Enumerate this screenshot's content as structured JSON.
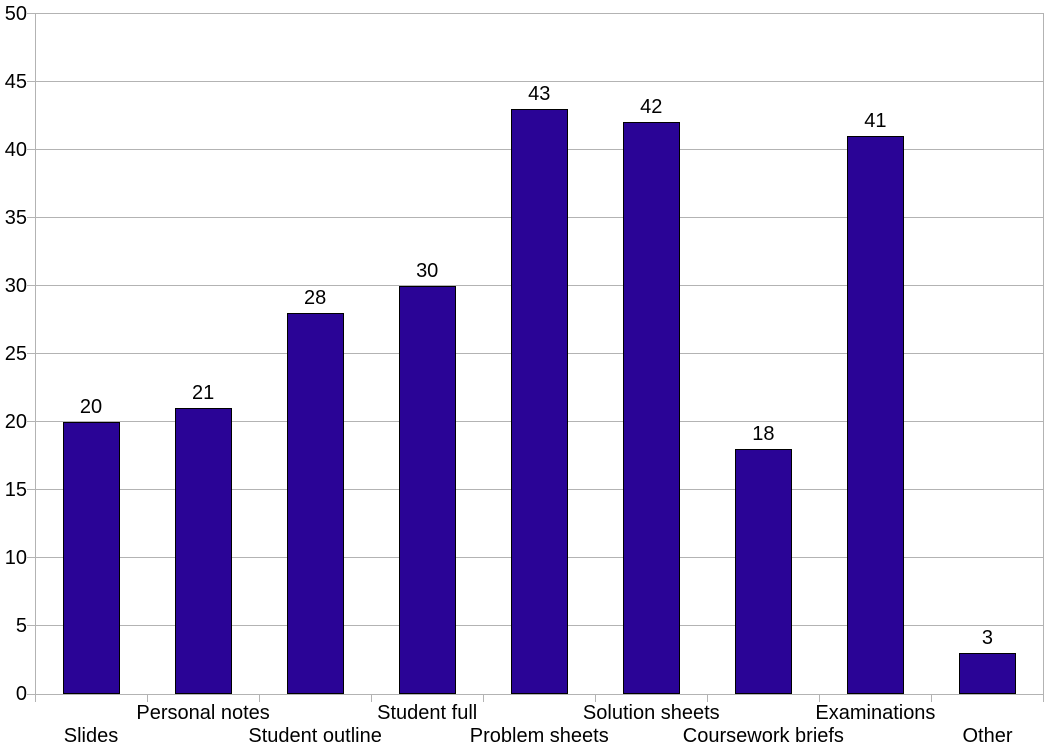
{
  "chart_data": {
    "type": "bar",
    "categories": [
      "Slides",
      "Personal notes",
      "Student outline",
      "Student full",
      "Problem sheets",
      "Solution sheets",
      "Coursework briefs",
      "Examinations",
      "Other"
    ],
    "values": [
      20,
      21,
      28,
      30,
      43,
      42,
      18,
      41,
      3
    ],
    "title": "",
    "xlabel": "",
    "ylabel": "",
    "ylim": [
      0,
      50
    ],
    "ytick_step": 5,
    "ytick_labels": [
      "0",
      "5",
      "10",
      "15",
      "20",
      "25",
      "30",
      "35",
      "40",
      "45",
      "50"
    ],
    "data_labels": [
      "20",
      "21",
      "28",
      "30",
      "43",
      "42",
      "18",
      "41",
      "3"
    ],
    "grid": "horizontal",
    "legend": "none",
    "colors": {
      "bar_fill": "#2a0496",
      "bar_border": "#000000",
      "grid_line": "#b3b3b3",
      "axis_line": "#b3b3b3",
      "text": "#000000",
      "background": "#ffffff"
    }
  }
}
